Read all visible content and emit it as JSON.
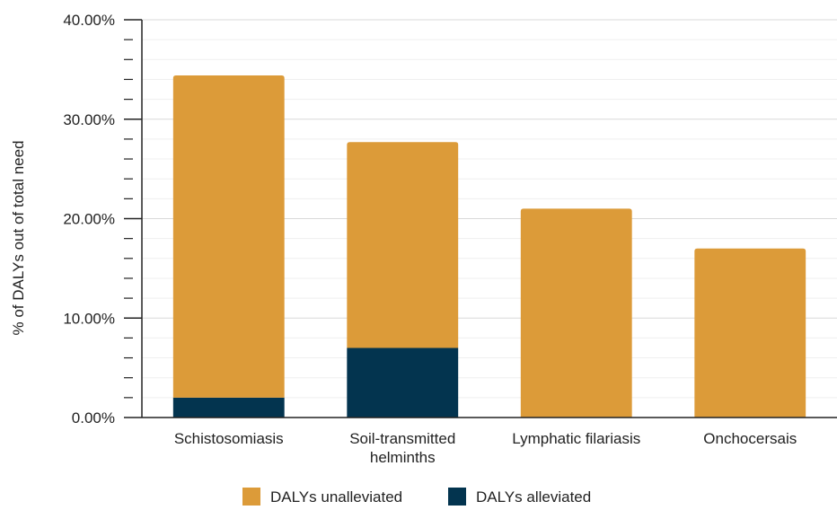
{
  "chart_data": {
    "type": "bar",
    "stacked": true,
    "categories": [
      "Schistosomiasis",
      "Soil-transmitted helminths",
      "Lymphatic filariasis",
      "Onchocersais"
    ],
    "category_lines": [
      [
        "Schistosomiasis"
      ],
      [
        "Soil-transmitted",
        "helminths"
      ],
      [
        "Lymphatic filariasis"
      ],
      [
        "Onchocersais"
      ]
    ],
    "series": [
      {
        "name": "DALYs alleviated",
        "values": [
          2.0,
          7.0,
          0.0,
          0.0
        ],
        "color": "#03344f"
      },
      {
        "name": "DALYs unalleviated",
        "values": [
          32.4,
          20.7,
          21.0,
          17.0
        ],
        "color": "#dc9b39"
      }
    ],
    "legend_order": [
      "DALYs unalleviated",
      "DALYs alleviated"
    ],
    "title": "",
    "xlabel": "",
    "ylabel": "% of DALYs out of total need",
    "ylim": [
      0,
      40
    ],
    "yticks": [
      0,
      10,
      20,
      30,
      40
    ],
    "ytick_labels": [
      "0.00%",
      "10.00%",
      "20.00%",
      "30.00%",
      "40.00%"
    ],
    "grid": true,
    "legend_position": "bottom"
  }
}
